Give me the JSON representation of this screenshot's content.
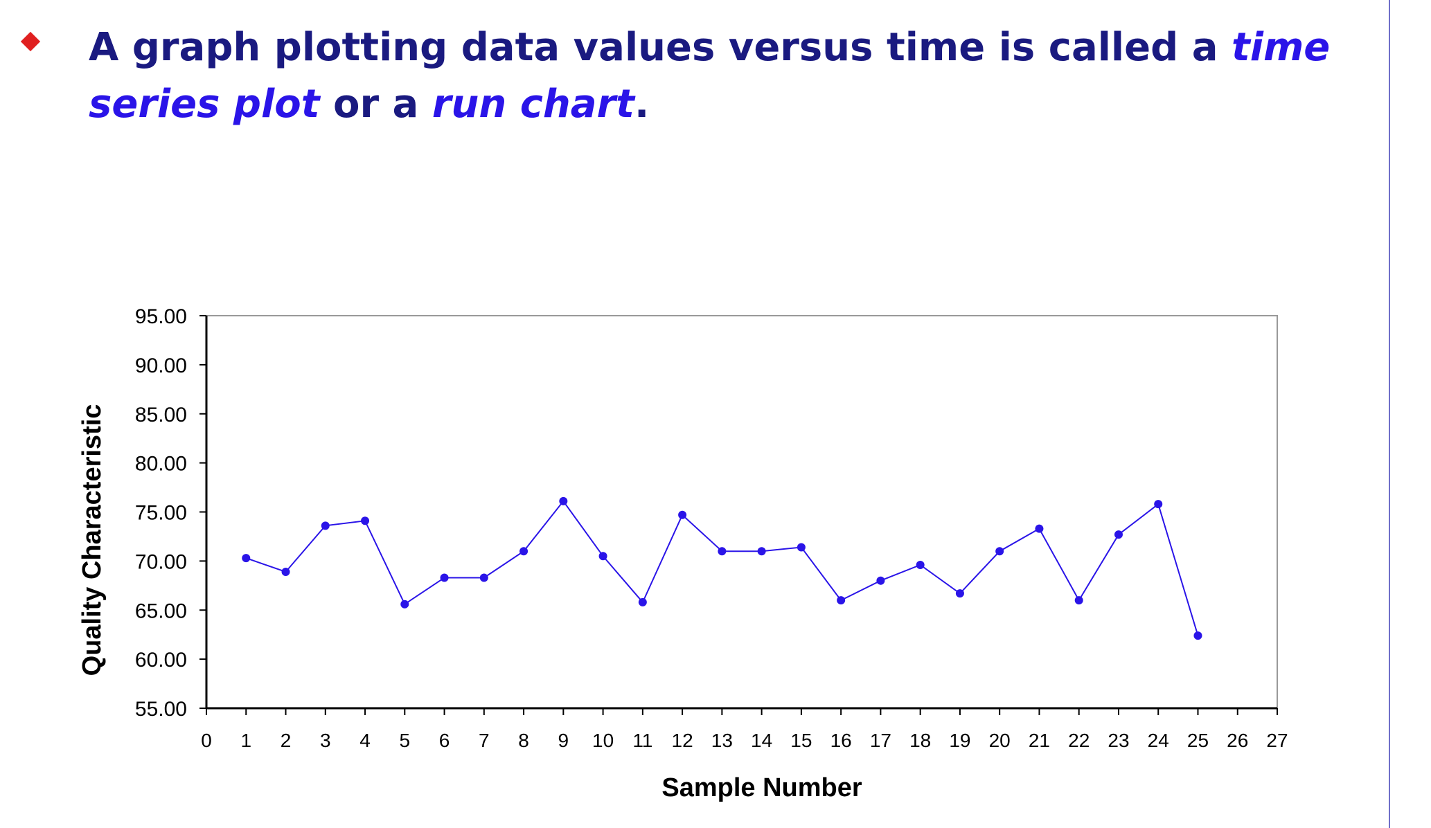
{
  "slide": {
    "headline_prefix": "A graph plotting data values versus time is called a ",
    "term1": "time series plot",
    "connector": " or a ",
    "term2": "run chart",
    "suffix": "."
  },
  "chart_data": {
    "type": "line",
    "title": "",
    "xlabel": "Sample Number",
    "ylabel": "Quality Characteristic",
    "xlim": [
      0,
      27
    ],
    "ylim": [
      55,
      95
    ],
    "x_ticks": [
      0,
      1,
      2,
      3,
      4,
      5,
      6,
      7,
      8,
      9,
      10,
      11,
      12,
      13,
      14,
      15,
      16,
      17,
      18,
      19,
      20,
      21,
      22,
      23,
      24,
      25,
      26,
      27
    ],
    "y_ticks": [
      "55.00",
      "60.00",
      "65.00",
      "70.00",
      "75.00",
      "80.00",
      "85.00",
      "90.00",
      "95.00"
    ],
    "grid": false,
    "legend": "none",
    "series": [
      {
        "color": "#2a14e8",
        "x": [
          1,
          2,
          3,
          4,
          5,
          6,
          7,
          8,
          9,
          10,
          11,
          12,
          13,
          14,
          15,
          16,
          17,
          18,
          19,
          20,
          21,
          22,
          23,
          24,
          25
        ],
        "y": [
          70.3,
          68.9,
          73.6,
          74.1,
          65.6,
          68.3,
          68.3,
          71.0,
          76.1,
          70.5,
          65.8,
          74.7,
          71.0,
          71.0,
          71.4,
          66.0,
          68.0,
          69.6,
          66.7,
          71.0,
          73.3,
          66.0,
          72.7,
          75.8,
          62.4
        ]
      }
    ]
  }
}
